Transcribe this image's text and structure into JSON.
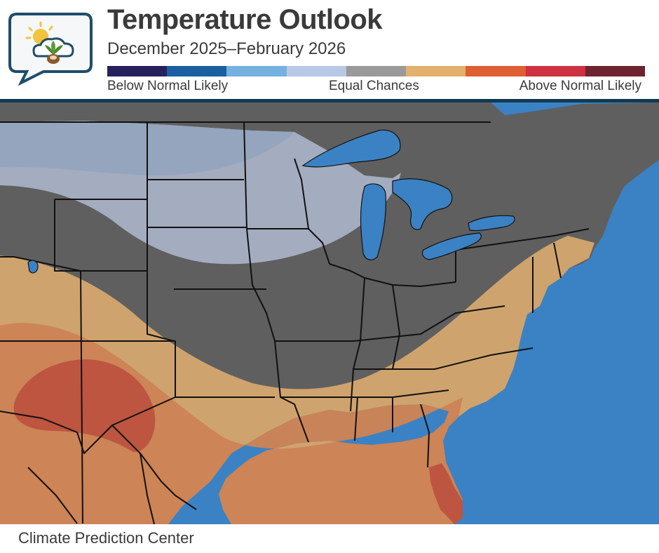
{
  "header": {
    "title": "Temperature Outlook",
    "subtitle": "December 2025–February 2026"
  },
  "legend": {
    "colors": [
      "#26215c",
      "#1b5fa0",
      "#74b1e0",
      "#b8c8e6",
      "#9a9a9a",
      "#e3b06d",
      "#dd5f33",
      "#ce3142",
      "#6d2430"
    ],
    "below_label": "Below Normal Likely",
    "equal_label": "Equal Chances",
    "above_label": "Above Normal Likely"
  },
  "map": {
    "water_color": "#3b82c4",
    "land_color": "#5f5f5f",
    "boundary_color": "#111111",
    "below_light_color": "#a8b0c4",
    "below_mid_color": "#93a4bd",
    "above_33_color": "#d3a56d",
    "above_40_color": "#cc8356",
    "above_50_color": "#bd5540"
  },
  "footer": {
    "source": "Climate Prediction Center"
  }
}
